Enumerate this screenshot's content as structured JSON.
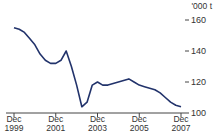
{
  "chart_data": {
    "type": "line",
    "y_label": "'000 t",
    "categories": [
      "Dec 1999",
      null,
      null,
      null,
      null,
      null,
      null,
      null,
      "Dec 2001",
      null,
      null,
      null,
      null,
      null,
      null,
      null,
      "Dec 2003",
      null,
      null,
      null,
      null,
      null,
      null,
      null,
      "Dec 2005",
      null,
      null,
      null,
      null,
      null,
      null,
      null,
      "Dec 2007"
    ],
    "values": [
      155,
      154,
      152,
      148,
      144,
      138,
      134,
      132,
      132,
      134,
      140,
      130,
      118,
      104,
      107,
      118,
      120,
      118,
      118,
      119,
      120,
      121,
      122,
      120,
      118,
      117,
      116,
      115,
      113,
      110,
      107,
      105,
      104
    ],
    "color": "#22336b",
    "ylim": [
      100,
      160
    ],
    "yticks": [
      100,
      120,
      140,
      160
    ],
    "grid": false
  }
}
